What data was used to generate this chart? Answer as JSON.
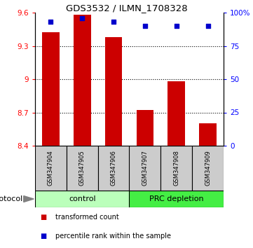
{
  "title": "GDS3532 / ILMN_1708328",
  "samples": [
    "GSM347904",
    "GSM347905",
    "GSM347906",
    "GSM347907",
    "GSM347908",
    "GSM347909"
  ],
  "bar_values": [
    9.42,
    9.58,
    9.38,
    8.72,
    8.98,
    8.6
  ],
  "percentile_values": [
    93,
    96,
    93,
    90,
    90,
    90
  ],
  "bar_color": "#cc0000",
  "dot_color": "#0000cc",
  "ymin": 8.4,
  "ymax": 9.6,
  "yticks_left": [
    8.4,
    8.7,
    9.0,
    9.3,
    9.6
  ],
  "yticks_right": [
    0,
    25,
    50,
    75,
    100
  ],
  "groups": [
    {
      "label": "control",
      "start": 0,
      "end": 3,
      "color": "#bbffbb"
    },
    {
      "label": "PRC depletion",
      "start": 3,
      "end": 6,
      "color": "#44ee44"
    }
  ],
  "protocol_label": "protocol",
  "legend_items": [
    {
      "color": "#cc0000",
      "label": "transformed count"
    },
    {
      "color": "#0000cc",
      "label": "percentile rank within the sample"
    }
  ],
  "bar_width": 0.55,
  "sample_bg_color": "#cccccc",
  "grid_color": "#000000",
  "title_fontsize": 9.5
}
